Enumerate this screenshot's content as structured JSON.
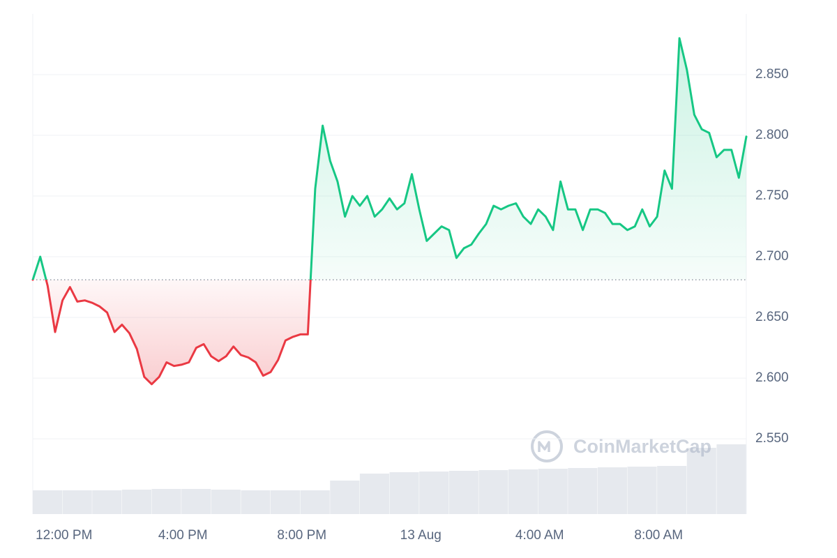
{
  "chart_data": {
    "type": "line",
    "x": [
      -1.05,
      -0.8,
      -0.55,
      -0.3,
      -0.05,
      0.2,
      0.45,
      0.7,
      0.95,
      1.2,
      1.45,
      1.7,
      1.95,
      2.2,
      2.45,
      2.7,
      2.95,
      3.2,
      3.45,
      3.7,
      3.95,
      4.2,
      4.45,
      4.7,
      4.95,
      5.2,
      5.45,
      5.7,
      5.95,
      6.2,
      6.45,
      6.7,
      6.95,
      7.2,
      7.45,
      7.7,
      7.95,
      8.2,
      8.45,
      8.7,
      8.95,
      9.2,
      9.45,
      9.7,
      9.95,
      10.2,
      10.45,
      10.7,
      10.95,
      11.2,
      11.45,
      11.7,
      11.95,
      12.2,
      12.45,
      12.7,
      12.95,
      13.2,
      13.45,
      13.7,
      13.95,
      14.2,
      14.45,
      14.7,
      14.95,
      15.2,
      15.45,
      15.7,
      15.95,
      16.2,
      16.45,
      16.7,
      16.95,
      17.2,
      17.45,
      17.7,
      17.95,
      18.2,
      18.45,
      18.7,
      18.95,
      19.2,
      19.45,
      19.7,
      19.95,
      20.2,
      20.45,
      20.7,
      20.95,
      21.2,
      21.45,
      21.7,
      21.95,
      22.2,
      22.45,
      22.7,
      22.95
    ],
    "values": [
      2.681,
      2.7,
      2.676,
      2.638,
      2.664,
      2.675,
      2.663,
      2.664,
      2.662,
      2.659,
      2.654,
      2.638,
      2.644,
      2.637,
      2.624,
      2.601,
      2.595,
      2.601,
      2.613,
      2.61,
      2.611,
      2.613,
      2.625,
      2.628,
      2.618,
      2.614,
      2.618,
      2.626,
      2.619,
      2.617,
      2.613,
      2.602,
      2.605,
      2.615,
      2.631,
      2.634,
      2.636,
      2.636,
      2.756,
      2.808,
      2.779,
      2.762,
      2.733,
      2.75,
      2.742,
      2.75,
      2.733,
      2.739,
      2.748,
      2.739,
      2.744,
      2.768,
      2.739,
      2.713,
      2.719,
      2.725,
      2.722,
      2.699,
      2.707,
      2.71,
      2.719,
      2.727,
      2.742,
      2.739,
      2.742,
      2.744,
      2.733,
      2.727,
      2.739,
      2.733,
      2.722,
      2.762,
      2.739,
      2.739,
      2.722,
      2.739,
      2.739,
      2.736,
      2.727,
      2.727,
      2.722,
      2.725,
      2.739,
      2.725,
      2.733,
      2.771,
      2.756,
      2.88,
      2.854,
      2.817,
      2.805,
      2.802,
      2.782,
      2.788,
      2.788,
      2.765,
      2.799
    ],
    "reference_value": 2.681,
    "color_up": "#16c784",
    "color_down": "#ea3943",
    "volume": {
      "x": [
        -1.05,
        -0.05,
        0.95,
        1.95,
        2.95,
        3.95,
        4.95,
        5.95,
        6.95,
        7.95,
        8.95,
        9.95,
        10.95,
        11.95,
        12.95,
        13.95,
        14.95,
        15.95,
        16.95,
        17.95,
        18.95,
        19.95,
        20.95,
        21.95
      ],
      "values": [
        34,
        34,
        34,
        35,
        36,
        36,
        35,
        34,
        34,
        34,
        48,
        58,
        60,
        61,
        62,
        63,
        64,
        65,
        66,
        67,
        68,
        69,
        95,
        100
      ],
      "color": "#e6e9ee"
    },
    "xlim": [
      -1.05,
      22.95
    ],
    "xticks": [
      {
        "value": 0,
        "label": "12:00 PM"
      },
      {
        "value": 4,
        "label": "4:00 PM"
      },
      {
        "value": 8,
        "label": "8:00 PM"
      },
      {
        "value": 12,
        "label": "13 Aug"
      },
      {
        "value": 16,
        "label": "4:00 AM"
      },
      {
        "value": 20,
        "label": "8:00 AM"
      }
    ],
    "ylim": [
      2.488,
      2.9
    ],
    "yticks": [
      {
        "value": 2.55,
        "label": "2.550"
      },
      {
        "value": 2.6,
        "label": "2.600"
      },
      {
        "value": 2.65,
        "label": "2.650"
      },
      {
        "value": 2.7,
        "label": "2.700"
      },
      {
        "value": 2.75,
        "label": "2.750"
      },
      {
        "value": 2.8,
        "label": "2.800"
      },
      {
        "value": 2.85,
        "label": "2.850"
      }
    ],
    "grid": true,
    "watermark": "CoinMarketCap"
  }
}
